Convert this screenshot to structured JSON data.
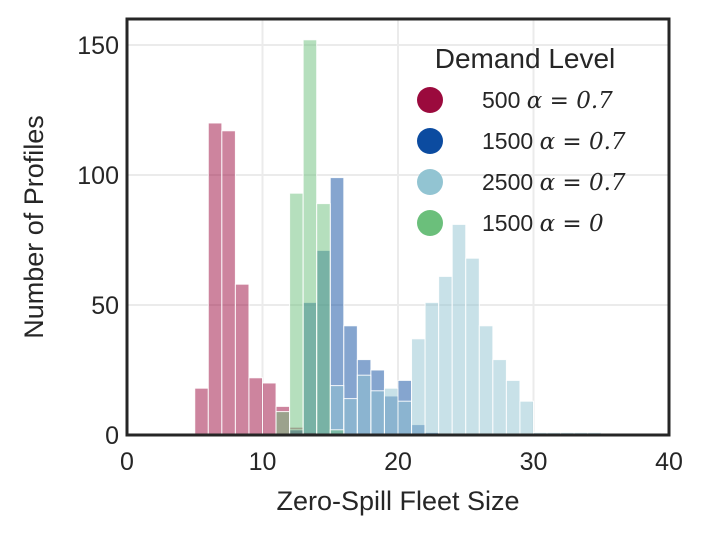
{
  "chart_data": {
    "type": "bar",
    "subtype": "overlapping-histogram",
    "title": "",
    "xlabel": "Zero-Spill Fleet Size",
    "ylabel": "Number of Profiles",
    "xlim": [
      0,
      40
    ],
    "ylim": [
      0,
      160
    ],
    "xticks": [
      0,
      10,
      20,
      30,
      40
    ],
    "yticks": [
      0,
      50,
      100,
      150
    ],
    "grid": true,
    "legend": {
      "title": "Demand Level",
      "placement": "top-right",
      "entries": [
        {
          "text": "500 ",
          "math": "α = 0.7",
          "color": "#9b0a3d"
        },
        {
          "text": "1500 ",
          "math": "α = 0.7",
          "color": "#0b4ba0"
        },
        {
          "text": "2500 ",
          "math": "α = 0.7",
          "color": "#92c4d2"
        },
        {
          "text": "1500 ",
          "math": "α = 0",
          "color": "#6bbf7b"
        }
      ]
    },
    "series": [
      {
        "name": "500 α = 0.7",
        "color": "#9b0a3d",
        "opacity": 0.5,
        "bin_width": 1,
        "bins": [
          {
            "x": 5,
            "count": 18
          },
          {
            "x": 6,
            "count": 120
          },
          {
            "x": 7,
            "count": 117
          },
          {
            "x": 8,
            "count": 58
          },
          {
            "x": 9,
            "count": 22
          },
          {
            "x": 10,
            "count": 20
          },
          {
            "x": 11,
            "count": 11
          },
          {
            "x": 12,
            "count": 3
          },
          {
            "x": 13,
            "count": 1
          }
        ]
      },
      {
        "name": "1500 α = 0.7",
        "color": "#0b4ba0",
        "opacity": 0.5,
        "bin_width": 1,
        "bins": [
          {
            "x": 12,
            "count": 2
          },
          {
            "x": 13,
            "count": 51
          },
          {
            "x": 14,
            "count": 71
          },
          {
            "x": 15,
            "count": 99
          },
          {
            "x": 16,
            "count": 42
          },
          {
            "x": 17,
            "count": 29
          },
          {
            "x": 18,
            "count": 25
          },
          {
            "x": 19,
            "count": 15
          },
          {
            "x": 20,
            "count": 21
          },
          {
            "x": 21,
            "count": 4
          },
          {
            "x": 22,
            "count": 1
          }
        ]
      },
      {
        "name": "2500 α = 0.7",
        "color": "#92c4d2",
        "opacity": 0.5,
        "bin_width": 1,
        "bins": [
          {
            "x": 15,
            "count": 19
          },
          {
            "x": 16,
            "count": 14
          },
          {
            "x": 17,
            "count": 23
          },
          {
            "x": 18,
            "count": 17
          },
          {
            "x": 19,
            "count": 18
          },
          {
            "x": 20,
            "count": 13
          },
          {
            "x": 21,
            "count": 37
          },
          {
            "x": 22,
            "count": 51
          },
          {
            "x": 23,
            "count": 61
          },
          {
            "x": 24,
            "count": 81
          },
          {
            "x": 25,
            "count": 68
          },
          {
            "x": 26,
            "count": 42
          },
          {
            "x": 27,
            "count": 29
          },
          {
            "x": 28,
            "count": 21
          },
          {
            "x": 29,
            "count": 13
          },
          {
            "x": 30,
            "count": 1
          },
          {
            "x": 31,
            "count": 1
          },
          {
            "x": 32,
            "count": 1
          },
          {
            "x": 33,
            "count": 1
          },
          {
            "x": 34,
            "count": 1
          }
        ]
      },
      {
        "name": "1500 α = 0",
        "color": "#6bbf7b",
        "opacity": 0.5,
        "bin_width": 1,
        "bins": [
          {
            "x": 11,
            "count": 9
          },
          {
            "x": 12,
            "count": 93
          },
          {
            "x": 13,
            "count": 152
          },
          {
            "x": 14,
            "count": 89
          },
          {
            "x": 15,
            "count": 2
          }
        ]
      }
    ]
  }
}
